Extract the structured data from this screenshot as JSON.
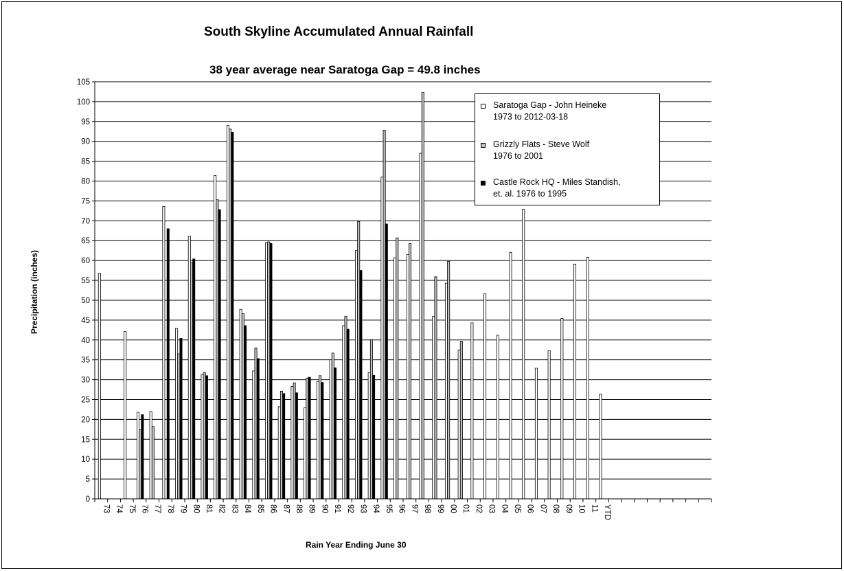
{
  "chart_data": {
    "type": "bar",
    "title": "South Skyline Accumulated Annual Rainfall",
    "subtitle": "38 year average  near Saratoga Gap = 49.8 inches",
    "ylabel": "Precipitation (inches)",
    "xlabel": "Rain Year Ending June 30",
    "ylim": [
      0,
      105
    ],
    "ytick_step": 5,
    "grid": true,
    "legend_position": "top-right",
    "categories": [
      "73",
      "74",
      "75",
      "76",
      "77",
      "78",
      "79",
      "80",
      "81",
      "82",
      "83",
      "84",
      "85",
      "86",
      "87",
      "88",
      "89",
      "90",
      "91",
      "92",
      "93",
      "94",
      "95",
      "96",
      "97",
      "98",
      "99",
      "00",
      "01",
      "02",
      "03",
      "04",
      "05",
      "06",
      "07",
      "08",
      "09",
      "10",
      "11",
      "YTD",
      "",
      "",
      "",
      "",
      "",
      "",
      "",
      ""
    ],
    "series": [
      {
        "name": "Saratoga Gap - John Heineke 1973 to 2012-03-18",
        "color": "#ffffff",
        "values": [
          56.8,
          null,
          42.1,
          21.8,
          22.0,
          73.6,
          42.9,
          66.1,
          31.3,
          81.4,
          94.0,
          47.7,
          32.2,
          64.5,
          23.2,
          28.3,
          22.9,
          29.5,
          35.0,
          43.6,
          62.5,
          31.8,
          81.0,
          60.7,
          61.5,
          87.0,
          45.9,
          54.3,
          37.5,
          44.3,
          51.6,
          41.2,
          62.0,
          72.9,
          32.9,
          37.3,
          45.4,
          59.1,
          60.8,
          26.4,
          null,
          null,
          null,
          null,
          null,
          null,
          null,
          null
        ]
      },
      {
        "name": "Grizzly Flats - Steve Wolf 1976 to 2001",
        "color": "#c0c0c0",
        "values": [
          null,
          null,
          null,
          17.4,
          18.2,
          null,
          36.5,
          59.5,
          31.8,
          75.3,
          93.1,
          46.6,
          38.0,
          64.7,
          27.1,
          29.2,
          30.4,
          31.0,
          36.7,
          45.9,
          69.8,
          40.1,
          92.8,
          65.7,
          64.3,
          102.3,
          55.9,
          59.8,
          39.7,
          null,
          null,
          null,
          null,
          null,
          null,
          null,
          null,
          null,
          null,
          null,
          null,
          null,
          null,
          null,
          null,
          null,
          null,
          null
        ]
      },
      {
        "name": "Castle Rock HQ - Miles Standish, et. al. 1976 to 1995",
        "color": "#000000",
        "values": [
          null,
          null,
          null,
          21.2,
          null,
          68.0,
          40.4,
          60.4,
          31.0,
          72.8,
          92.3,
          43.6,
          35.3,
          64.3,
          26.5,
          26.7,
          30.6,
          29.3,
          33.0,
          42.7,
          57.5,
          31.1,
          69.2,
          null,
          null,
          null,
          null,
          null,
          null,
          null,
          null,
          null,
          null,
          null,
          null,
          null,
          null,
          null,
          null,
          null,
          null,
          null,
          null,
          null,
          null,
          null,
          null,
          null
        ]
      }
    ]
  },
  "legend": {
    "items": [
      {
        "line1": "Saratoga Gap - John Heineke",
        "line2": "1973 to 2012-03-18",
        "color": "#ffffff"
      },
      {
        "line1": "Grizzly Flats - Steve Wolf",
        "line2": "1976 to 2001",
        "color": "#c0c0c0"
      },
      {
        "line1": "Castle Rock HQ - Miles Standish,",
        "line2": "et. al. 1976 to 1995",
        "color": "#000000"
      }
    ]
  }
}
